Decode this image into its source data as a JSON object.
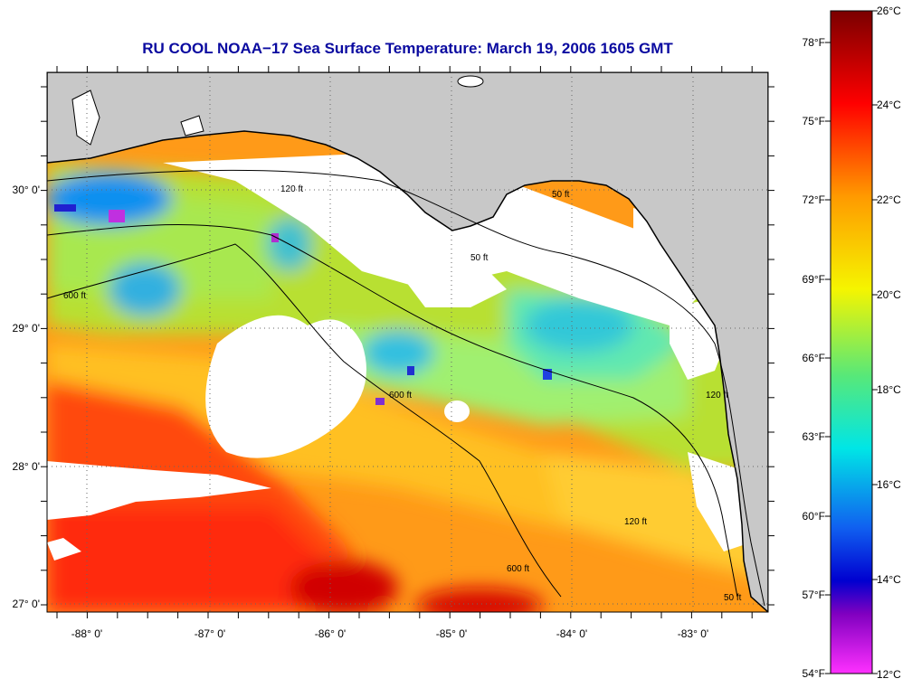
{
  "title": "RU COOL  NOAA−17  Sea Surface Temperature:  March 19, 2006 1605 GMT",
  "map": {
    "lon_ticks": [
      "-88° 0'",
      "-87° 0'",
      "-86° 0'",
      "-85° 0'",
      "-84° 0'",
      "-83° 0'"
    ],
    "lat_ticks": [
      "30° 0'",
      "29° 0'",
      "28° 0'",
      "27° 0'"
    ],
    "contour_labels": [
      "50 ft",
      "120 ft",
      "600 ft"
    ],
    "colors": {
      "land": "#c8c8c8",
      "cloud": "#ffffff",
      "coast": "#000000"
    }
  },
  "colorbar": {
    "fahrenheit_labels": [
      "78°F",
      "75°F",
      "72°F",
      "69°F",
      "66°F",
      "63°F",
      "60°F",
      "57°F",
      "54°F"
    ],
    "celsius_labels": [
      "26°C",
      "24°C",
      "22°C",
      "20°C",
      "18°C",
      "16°C",
      "14°C",
      "12°C"
    ],
    "stops": [
      "#7a0000",
      "#ff0000",
      "#ff9a00",
      "#f5f500",
      "#58e878",
      "#00e6e6",
      "#1060f0",
      "#0000d0",
      "#8000c0",
      "#ff30ff"
    ]
  }
}
